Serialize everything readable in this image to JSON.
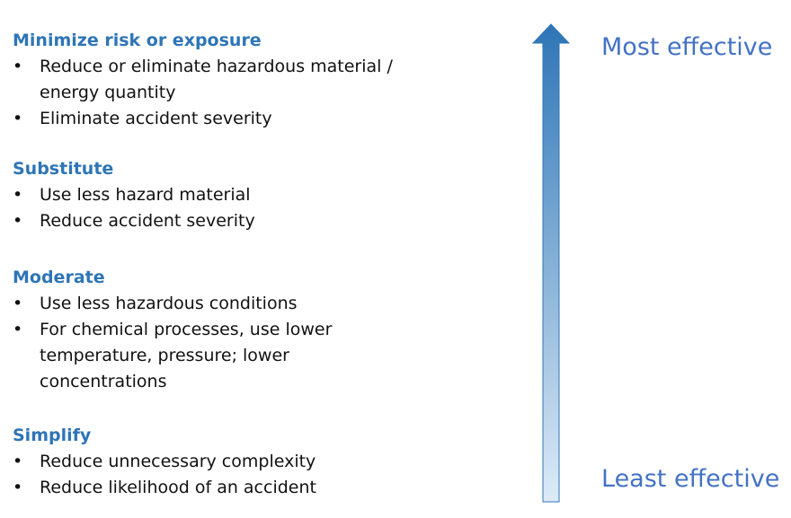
{
  "sections": [
    {
      "title": "Minimize risk or exposure",
      "bullets": [
        [
          "Reduce or eliminate hazardous material /",
          "energy quantity"
        ],
        [
          "Eliminate accident severity"
        ]
      ]
    },
    {
      "title": "Substitute",
      "bullets": [
        [
          "Use less hazard material"
        ],
        [
          "Reduce accident severity"
        ]
      ]
    },
    {
      "title": "Moderate",
      "bullets": [
        [
          "Use less hazardous conditions"
        ],
        [
          "For chemical processes, use lower",
          "temperature, pressure; lower",
          "concentrations"
        ]
      ]
    },
    {
      "title": "Simplify",
      "bullets": [
        [
          "Reduce unnecessary complexity"
        ],
        [
          "Reduce likelihood of an accident"
        ]
      ]
    }
  ],
  "bullet_symbol": "•",
  "arrow": {
    "top_label": "Most effective",
    "bottom_label": "Least effective",
    "top_color": "#2E75B6",
    "bottom_color": "#DDEBF7",
    "label_color": "#4472C4"
  }
}
